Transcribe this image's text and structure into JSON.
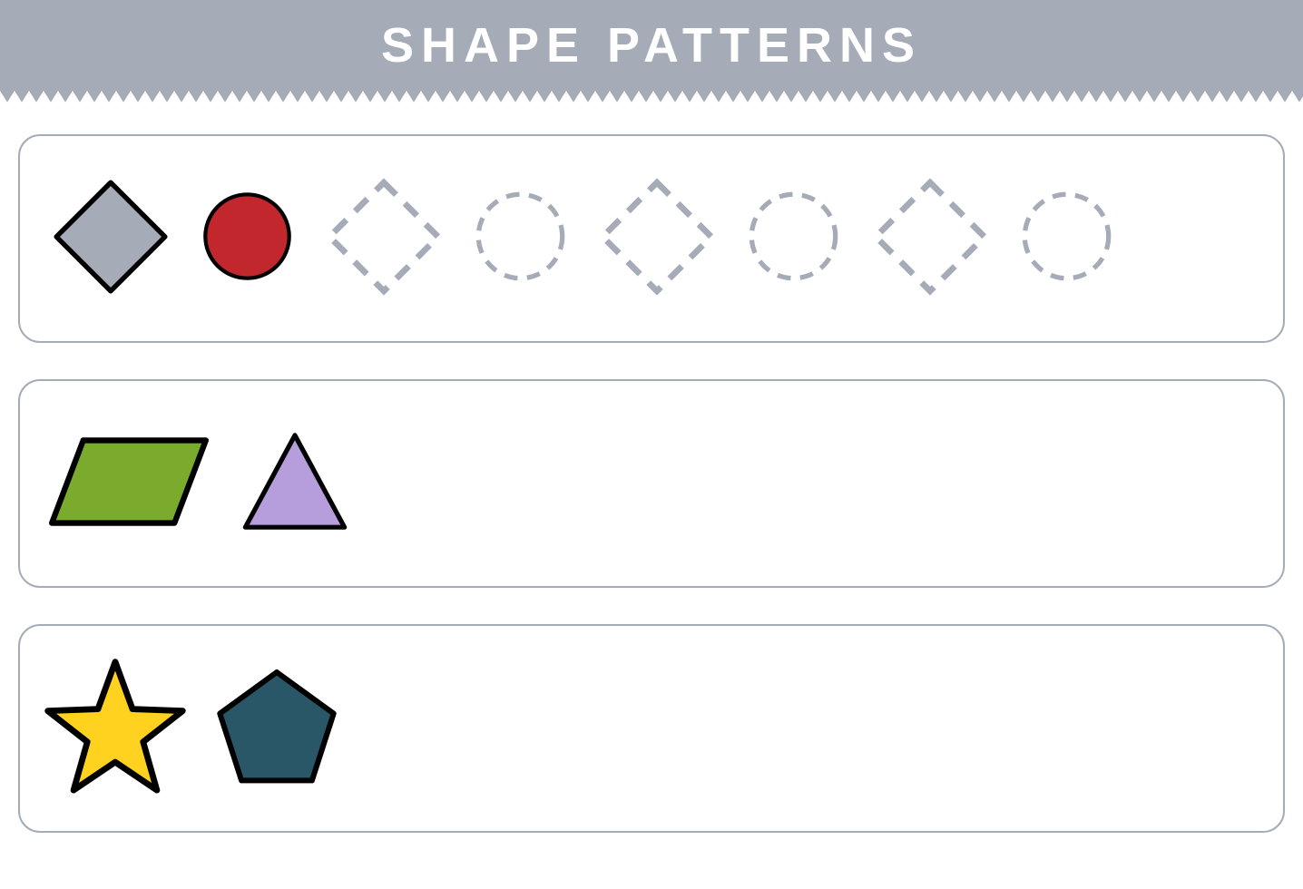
{
  "title": "SHAPE PATTERNS",
  "colors": {
    "header_bg": "#a5abb7",
    "title_text": "#ffffff",
    "box_border": "#a5abb7",
    "shape_stroke": "#000000",
    "stroke_width": 4,
    "dash_stroke": "#a5abb7",
    "dash_width": 5,
    "dash_pattern": "14 10"
  },
  "rows": [
    {
      "id": "row1",
      "shapes": [
        {
          "type": "rhombus",
          "fill": "#a5abb7",
          "traced": false,
          "size": 160
        },
        {
          "type": "circle",
          "fill": "#c1272d",
          "traced": false,
          "size": 105
        },
        {
          "type": "rhombus",
          "fill": "none",
          "traced": true,
          "size": 160
        },
        {
          "type": "circle",
          "fill": "none",
          "traced": true,
          "size": 105
        },
        {
          "type": "rhombus",
          "fill": "none",
          "traced": true,
          "size": 160
        },
        {
          "type": "circle",
          "fill": "none",
          "traced": true,
          "size": 105
        },
        {
          "type": "rhombus",
          "fill": "none",
          "traced": true,
          "size": 160
        },
        {
          "type": "circle",
          "fill": "none",
          "traced": true,
          "size": 105
        }
      ]
    },
    {
      "id": "row2",
      "shapes": [
        {
          "type": "parallelogram",
          "fill": "#7aab2c",
          "traced": false,
          "size": 200
        },
        {
          "type": "triangle",
          "fill": "#b69ddc",
          "traced": false,
          "size": 130
        }
      ]
    },
    {
      "id": "row3",
      "shapes": [
        {
          "type": "star",
          "fill": "#ffd220",
          "traced": false,
          "size": 170
        },
        {
          "type": "pentagon",
          "fill": "#2a5768",
          "traced": false,
          "size": 150
        }
      ]
    }
  ]
}
